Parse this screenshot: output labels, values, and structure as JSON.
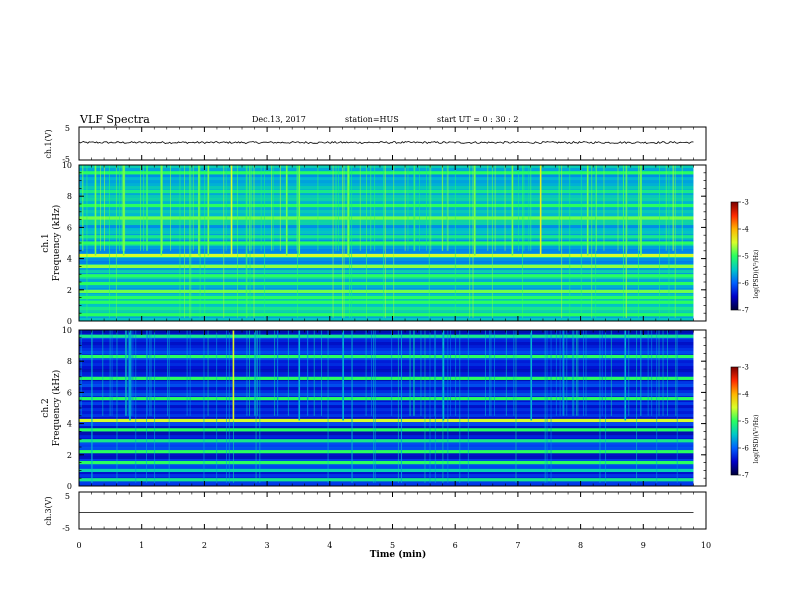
{
  "header": {
    "title": "VLF Spectra",
    "date": "Dec.13, 2017",
    "station": "station=HUS",
    "start": "start  UT =   0 : 30 : 2"
  },
  "colorbar": {
    "label": "log(PSD)(V²/Hz)",
    "ticks": [
      "-3",
      "-4",
      "-5",
      "-6",
      "-7"
    ],
    "stops": [
      "#7a0000",
      "#ff2a00",
      "#ffb400",
      "#d8ff2a",
      "#28ff60",
      "#00c8c8",
      "#0060ff",
      "#0000c8",
      "#00003a"
    ]
  },
  "chart_data": [
    {
      "type": "line",
      "id": "ch1_waveform",
      "ylabel": "ch.1(V)",
      "ylim": [
        -5,
        5
      ],
      "y_ticks": [
        "5",
        "-5"
      ],
      "x": [
        0,
        1,
        2,
        3,
        4,
        5,
        6,
        7,
        8,
        9,
        9.8
      ],
      "y": [
        0.3,
        0.3,
        0.3,
        0.3,
        0.3,
        0.3,
        0.3,
        0.3,
        0.3,
        0.3,
        0.3
      ],
      "xlim": [
        0,
        10
      ]
    },
    {
      "type": "heatmap",
      "id": "ch1_spectrogram",
      "ylabel_top": "ch.1",
      "ylabel": "Frequency (kHz)",
      "ylim": [
        0,
        10
      ],
      "y_ticks": [
        "0",
        "2",
        "4",
        "6",
        "8",
        "10"
      ],
      "xlim": [
        0,
        10
      ],
      "data_end_min": 9.8,
      "colorscale": "log(PSD)(V²/Hz)",
      "zlim": [
        -7,
        -3
      ],
      "background_level": -5.6,
      "tones_khz": [
        {
          "f": 0.4,
          "level": -5.0
        },
        {
          "f": 0.8,
          "level": -5.2
        },
        {
          "f": 1.2,
          "level": -5.0
        },
        {
          "f": 1.5,
          "level": -5.0
        },
        {
          "f": 1.9,
          "level": -4.8
        },
        {
          "f": 2.4,
          "level": -5.0
        },
        {
          "f": 2.9,
          "level": -5.0
        },
        {
          "f": 3.5,
          "level": -4.7
        },
        {
          "f": 4.2,
          "level": -4.5
        },
        {
          "f": 5.0,
          "level": -5.0
        },
        {
          "f": 5.4,
          "level": -5.2
        },
        {
          "f": 6.6,
          "level": -4.8
        },
        {
          "f": 7.4,
          "level": -5.0
        },
        {
          "f": 8.3,
          "level": -5.2
        },
        {
          "f": 9.5,
          "level": -5.0
        }
      ],
      "impulses_min": [
        {
          "t": 0.25,
          "level": -4.8
        },
        {
          "t": 0.7,
          "level": -4.8
        },
        {
          "t": 1.3,
          "level": -4.8
        },
        {
          "t": 1.9,
          "level": -4.8
        },
        {
          "t": 2.05,
          "level": -4.8
        },
        {
          "t": 2.42,
          "level": -4.5
        },
        {
          "t": 3.3,
          "level": -4.8
        },
        {
          "t": 3.5,
          "level": -4.8
        },
        {
          "t": 4.28,
          "level": -4.8
        },
        {
          "t": 6.3,
          "level": -4.8
        },
        {
          "t": 6.9,
          "level": -4.8
        },
        {
          "t": 7.35,
          "level": -4.4
        },
        {
          "t": 8.1,
          "level": -4.8
        },
        {
          "t": 8.95,
          "level": -4.8
        }
      ]
    },
    {
      "type": "heatmap",
      "id": "ch2_spectrogram",
      "ylabel_top": "ch.2",
      "ylabel": "Frequency (kHz)",
      "ylim": [
        0,
        10
      ],
      "y_ticks": [
        "0",
        "2",
        "4",
        "6",
        "8",
        "10"
      ],
      "xlim": [
        0,
        10
      ],
      "data_end_min": 9.8,
      "colorscale": "log(PSD)(V²/Hz)",
      "zlim": [
        -7,
        -3
      ],
      "background_level": -6.3,
      "tones_khz": [
        {
          "f": 0.4,
          "level": -5.2
        },
        {
          "f": 1.0,
          "level": -5.4
        },
        {
          "f": 1.5,
          "level": -5.0
        },
        {
          "f": 2.2,
          "level": -5.0
        },
        {
          "f": 2.9,
          "level": -5.2
        },
        {
          "f": 3.6,
          "level": -5.0
        },
        {
          "f": 4.2,
          "level": -4.5
        },
        {
          "f": 5.6,
          "level": -5.0
        },
        {
          "f": 6.9,
          "level": -5.0
        },
        {
          "f": 8.3,
          "level": -5.0
        },
        {
          "f": 9.6,
          "level": -5.2
        }
      ],
      "impulses_min": [
        {
          "t": 0.8,
          "level": -5.6
        },
        {
          "t": 2.45,
          "level": -4.4
        },
        {
          "t": 3.5,
          "level": -5.6
        },
        {
          "t": 4.2,
          "level": -5.6
        },
        {
          "t": 5.8,
          "level": -5.6
        },
        {
          "t": 7.2,
          "level": -5.6
        },
        {
          "t": 8.7,
          "level": -5.6
        }
      ]
    },
    {
      "type": "line",
      "id": "ch3_waveform",
      "ylabel": "ch.3(V)",
      "ylim": [
        -5,
        5
      ],
      "y_ticks": [
        "5",
        "-5"
      ],
      "x": [
        0,
        9.8
      ],
      "y": [
        -0.5,
        -0.5
      ],
      "xlim": [
        0,
        10
      ],
      "xlabel": "Time (min)",
      "x_ticks": [
        "0",
        "1",
        "2",
        "3",
        "4",
        "5",
        "6",
        "7",
        "8",
        "9",
        "10"
      ]
    }
  ]
}
